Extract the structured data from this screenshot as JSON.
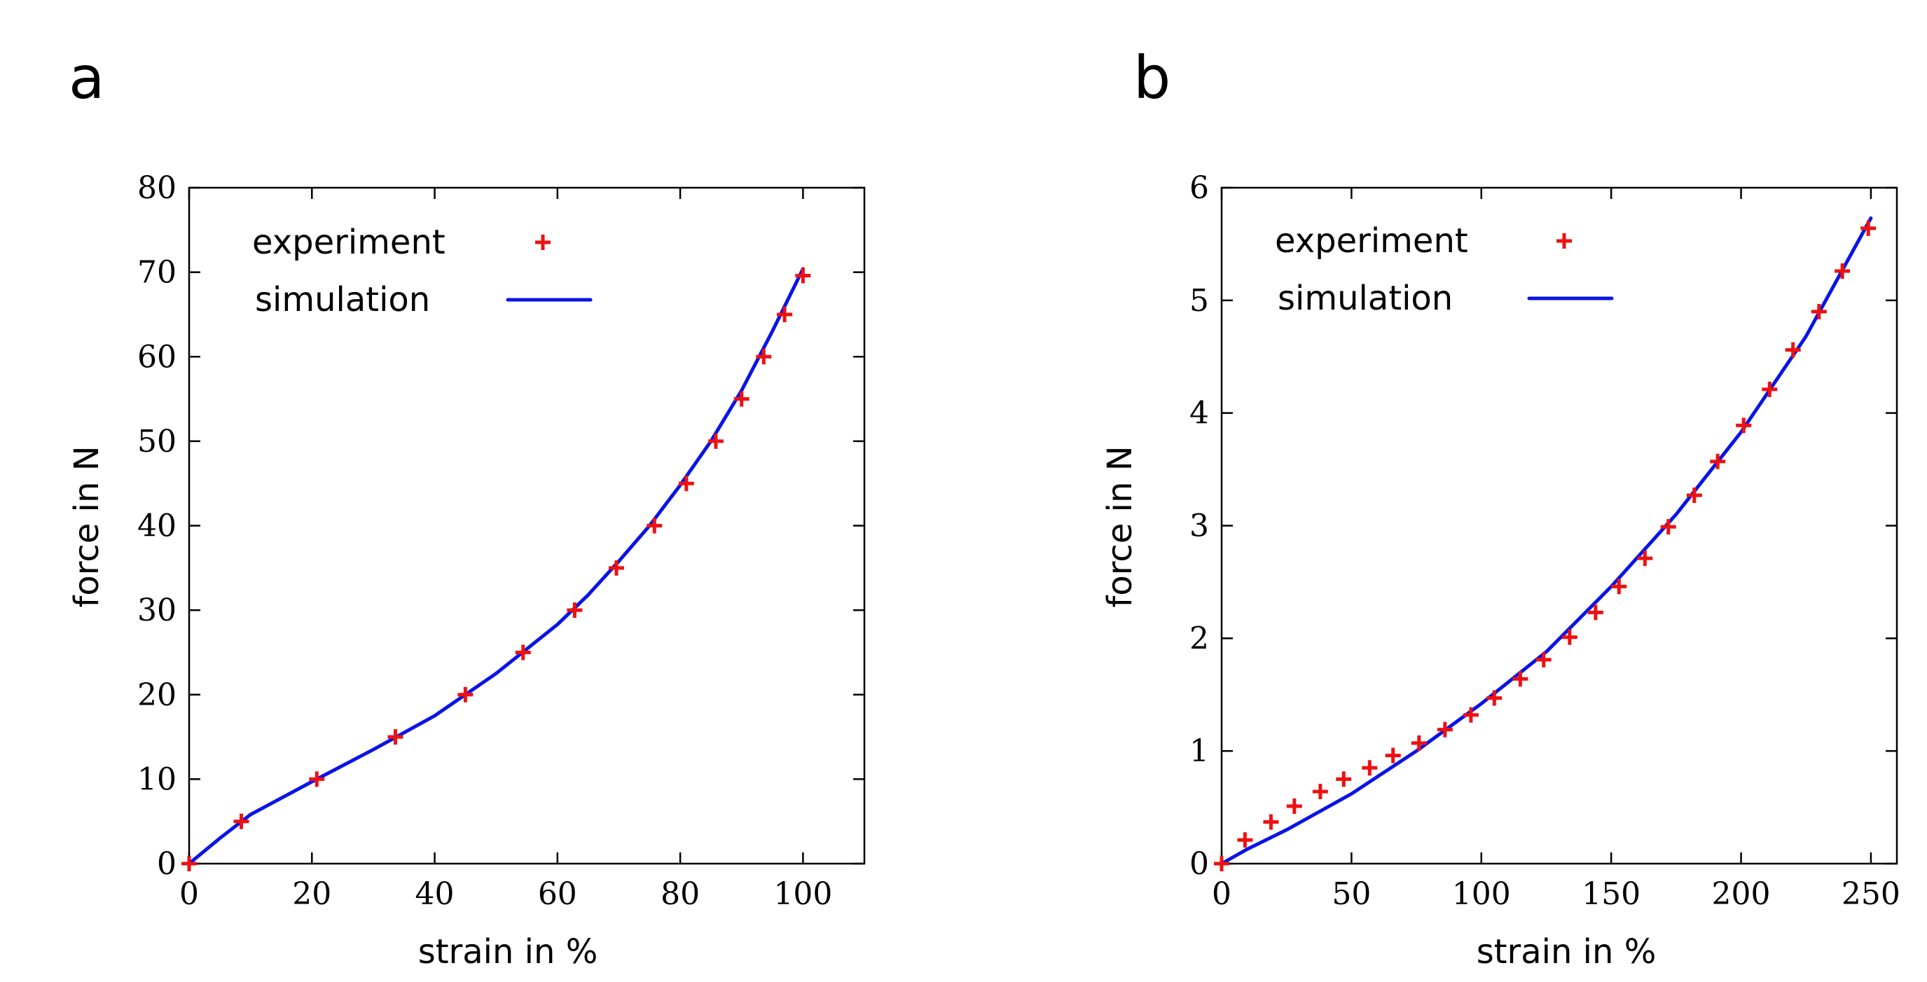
{
  "chart_data": [
    {
      "type": "scatter",
      "panel_label": "a",
      "xlabel": "strain in %",
      "ylabel": "force in N",
      "xlim": [
        0,
        110
      ],
      "ylim": [
        0,
        80
      ],
      "xticks": [
        0,
        20,
        40,
        60,
        80,
        100
      ],
      "yticks": [
        0,
        10,
        20,
        30,
        40,
        50,
        60,
        70,
        80
      ],
      "grid": false,
      "legend_position": "top-left",
      "series": [
        {
          "name": "experiment",
          "kind": "points",
          "color": "#ee1111",
          "x": [
            0,
            8.5,
            20.8,
            33.6,
            45,
            54.4,
            62.8,
            69.6,
            75.8,
            81,
            85.8,
            90,
            93.6,
            97,
            100
          ],
          "y": [
            0,
            5,
            10,
            15,
            20,
            25,
            30,
            35,
            40,
            45,
            50,
            55,
            60,
            65,
            69.6
          ]
        },
        {
          "name": "simulation",
          "kind": "line",
          "color": "#0a14e6",
          "x": [
            0,
            5,
            10,
            20,
            30,
            40,
            50,
            60,
            65,
            70,
            75,
            80,
            85,
            90,
            95,
            100
          ],
          "y": [
            0,
            3,
            5.8,
            9.7,
            13.5,
            17.5,
            22.5,
            28.3,
            31.8,
            35.8,
            40,
            44.8,
            50,
            56,
            63,
            70.4
          ]
        }
      ]
    },
    {
      "type": "scatter",
      "panel_label": "b",
      "xlabel": "strain in %",
      "ylabel": "force in N",
      "xlim": [
        0,
        260
      ],
      "ylim": [
        0,
        6
      ],
      "xticks": [
        0,
        50,
        100,
        150,
        200,
        250
      ],
      "yticks": [
        0,
        1,
        2,
        3,
        4,
        5,
        6
      ],
      "grid": false,
      "legend_position": "top-left",
      "series": [
        {
          "name": "experiment",
          "kind": "points",
          "color": "#ee1111",
          "x": [
            0,
            9,
            19,
            28,
            38,
            47,
            57,
            66,
            76,
            86,
            96,
            105,
            115,
            124,
            134,
            144,
            153,
            163,
            172,
            182,
            191,
            201,
            211,
            220,
            230,
            239,
            249
          ],
          "y": [
            0,
            0.21,
            0.37,
            0.51,
            0.64,
            0.75,
            0.85,
            0.96,
            1.07,
            1.19,
            1.32,
            1.47,
            1.64,
            1.81,
            2.01,
            2.23,
            2.46,
            2.71,
            2.99,
            3.27,
            3.57,
            3.89,
            4.21,
            4.56,
            4.9,
            5.26,
            5.64
          ]
        },
        {
          "name": "simulation",
          "kind": "line",
          "color": "#0a14e6",
          "x": [
            0,
            10,
            25,
            50,
            75,
            100,
            125,
            150,
            175,
            200,
            225,
            250
          ],
          "y": [
            0,
            0.13,
            0.3,
            0.62,
            1.0,
            1.42,
            1.88,
            2.46,
            3.1,
            3.83,
            4.68,
            5.73
          ]
        }
      ]
    }
  ]
}
